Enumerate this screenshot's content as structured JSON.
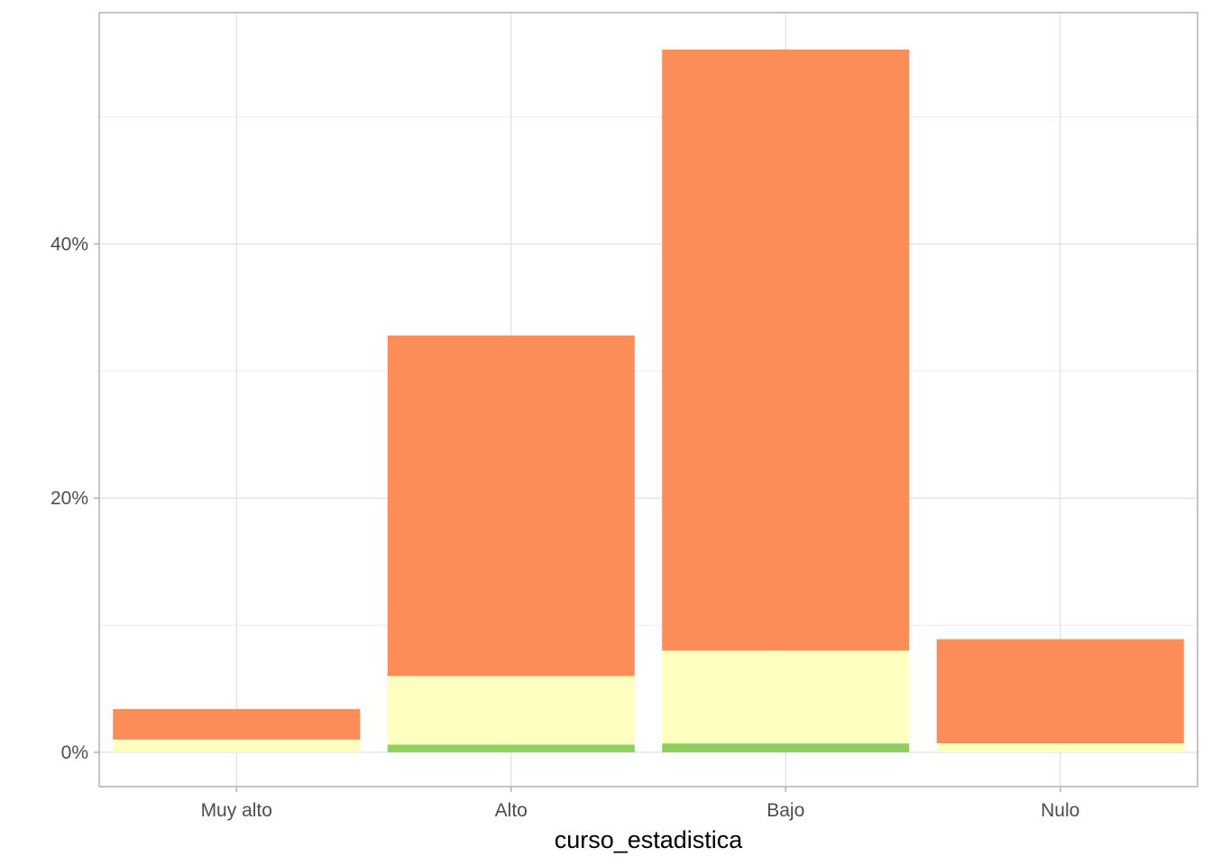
{
  "chart_data": {
    "type": "bar",
    "stacked": true,
    "title": "",
    "xlabel": "curso_estadistica",
    "ylabel": "",
    "categories": [
      "Muy alto",
      "Alto",
      "Bajo",
      "Nulo"
    ],
    "series": [
      {
        "color": "#91cf60",
        "values": [
          0.0,
          0.6,
          0.7,
          0.0
        ]
      },
      {
        "color": "#ffffbf",
        "values": [
          1.0,
          5.4,
          7.3,
          0.7
        ]
      },
      {
        "color": "#fc8d59",
        "values": [
          2.4,
          26.8,
          47.3,
          8.2
        ]
      }
    ],
    "ylim": [
      -2.7,
      58.2
    ],
    "yticks": [
      0,
      20,
      40
    ],
    "ytick_labels": [
      "0%",
      "20%",
      "40%"
    ],
    "minor_gridlines": [
      10,
      30,
      50
    ],
    "grid": true,
    "legend": "none"
  }
}
